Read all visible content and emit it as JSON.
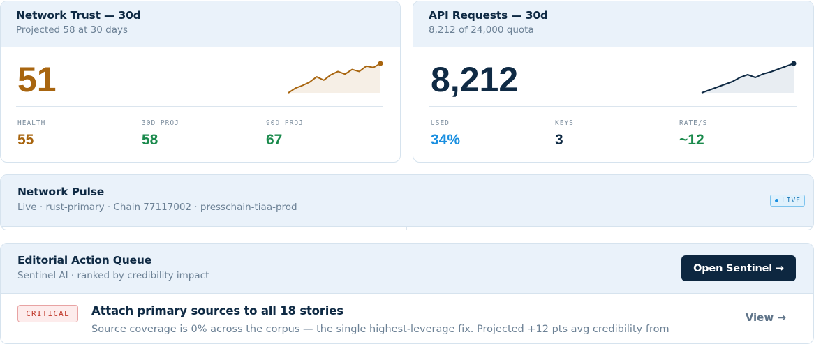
{
  "colors": {
    "trust_accent": "#a8650f",
    "proj_green": "#1a8a4c",
    "navy": "#0f2a44",
    "used_blue": "#1a8fe0"
  },
  "trust": {
    "title": "Network Trust — 30d",
    "subtitle": "Projected 58 at 30 days",
    "value": "51",
    "trend": [
      2,
      9,
      13,
      18,
      26,
      21,
      29,
      34,
      30,
      37,
      34,
      42,
      40,
      46
    ],
    "stats": [
      {
        "label": "HEALTH",
        "value": "55"
      },
      {
        "label": "30D PROJ",
        "value": "58"
      },
      {
        "label": "90D PROJ",
        "value": "67"
      }
    ]
  },
  "api": {
    "title": "API Requests — 30d",
    "subtitle": "8,212 of 24,000 quota",
    "value": "8,212",
    "trend": [
      2,
      6,
      10,
      14,
      18,
      24,
      28,
      24,
      29,
      32,
      36,
      40,
      44
    ],
    "stats": [
      {
        "label": "USED",
        "value": "34%"
      },
      {
        "label": "KEYS",
        "value": "3"
      },
      {
        "label": "RATE/S",
        "value": "~12"
      }
    ]
  },
  "pulse": {
    "title": "Network Pulse",
    "subtitle": "Live · rust-primary · Chain 77117002 · presschain-tiaa-prod",
    "badge": "LIVE"
  },
  "queue": {
    "title": "Editorial Action Queue",
    "subtitle": "Sentinel AI · ranked by credibility impact",
    "button": "Open Sentinel →",
    "items": [
      {
        "severity": "CRITICAL",
        "title": "Attach primary sources to all 18 stories",
        "description": "Source coverage is 0% across the corpus — the single highest-leverage fix. Projected +12 pts avg credibility from",
        "action": "View →"
      }
    ]
  }
}
